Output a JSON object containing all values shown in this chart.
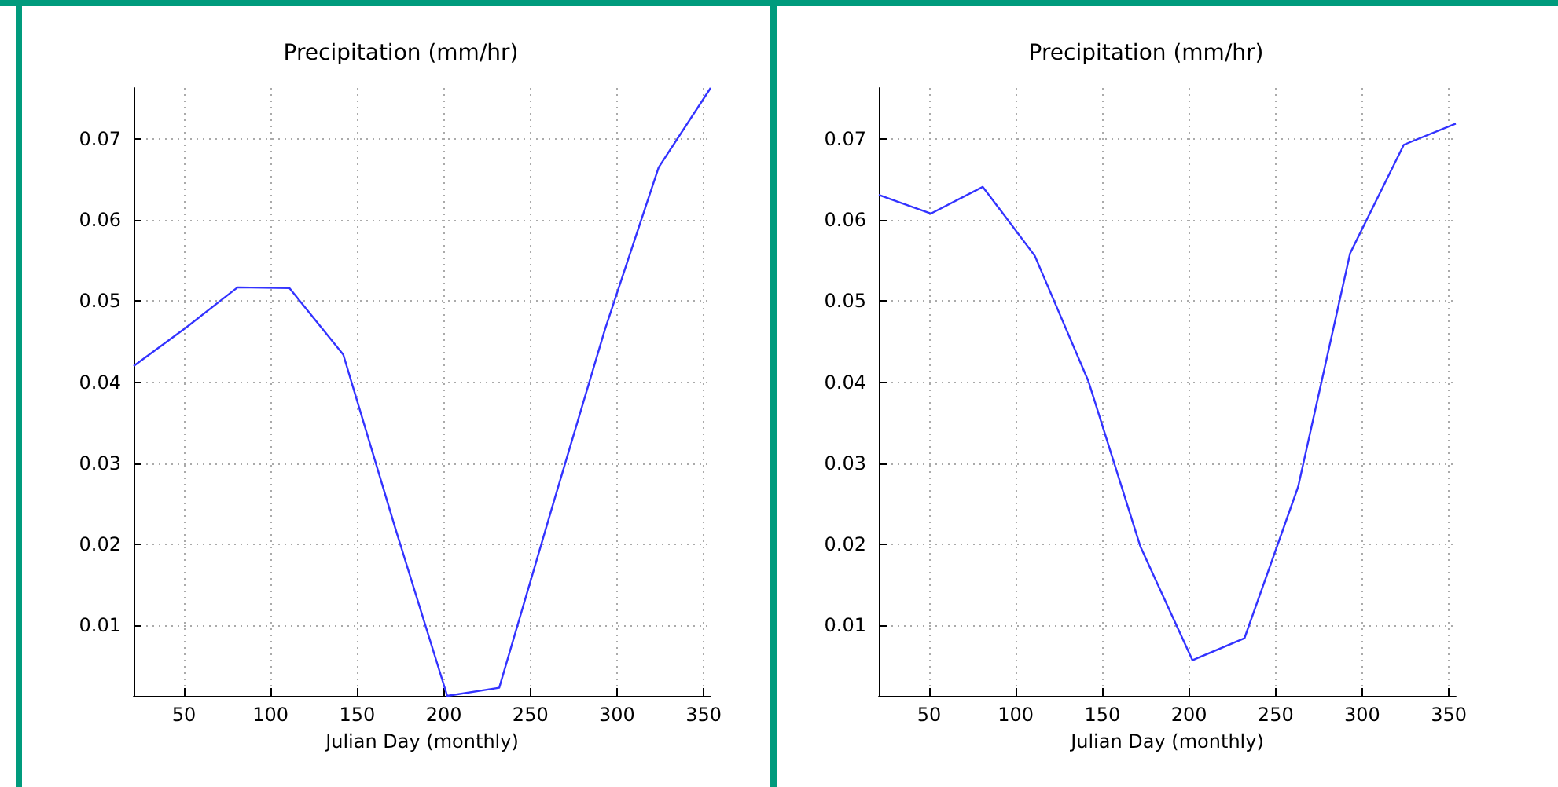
{
  "chart_data": [
    {
      "type": "line",
      "title": "Precipitation (mm/hr)",
      "xlabel": "Julian Day (monthly)",
      "x": [
        21,
        51,
        81,
        111,
        142,
        172,
        202,
        232,
        263,
        293,
        324,
        354
      ],
      "series": [
        {
          "color": "#3333ff",
          "values": [
            0.042,
            0.0467,
            0.0517,
            0.0516,
            0.0434,
            0.022,
            0.0013,
            0.0023,
            0.0249,
            0.0465,
            0.0665,
            0.0763
          ]
        }
      ],
      "xlim": [
        21,
        354
      ],
      "ylim": [
        0.0013,
        0.0763
      ],
      "xticks": [
        50,
        100,
        150,
        200,
        250,
        300,
        350
      ],
      "yticks": [
        0.01,
        0.02,
        0.03,
        0.04,
        0.05,
        0.06,
        0.07
      ],
      "grid": true,
      "line_style": "solid",
      "marker": "none"
    },
    {
      "type": "line",
      "title": "Precipitation (mm/hr)",
      "xlabel": "Julian Day (monthly)",
      "x": [
        21,
        51,
        81,
        111,
        142,
        172,
        202,
        232,
        263,
        293,
        324,
        354
      ],
      "series": [
        {
          "color": "#3333ff",
          "values": [
            0.0631,
            0.0608,
            0.0641,
            0.0556,
            0.0401,
            0.0197,
            0.0057,
            0.0084,
            0.0271,
            0.0559,
            0.0693,
            0.0719
          ]
        }
      ],
      "xlim": [
        21,
        354
      ],
      "ylim": [
        0.0013,
        0.0763
      ],
      "xticks": [
        50,
        100,
        150,
        200,
        250,
        300,
        350
      ],
      "yticks": [
        0.01,
        0.02,
        0.03,
        0.04,
        0.05,
        0.06,
        0.07
      ],
      "grid": true,
      "line_style": "solid",
      "marker": "none"
    }
  ]
}
